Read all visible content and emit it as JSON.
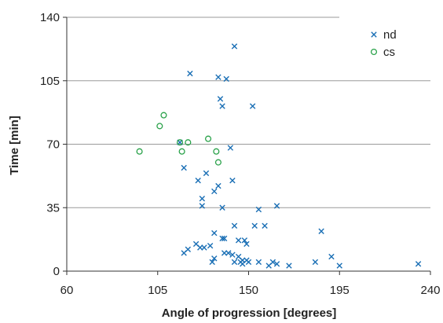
{
  "chart_data": {
    "type": "scatter",
    "title": "",
    "xlabel": "Angle of progression [degrees]",
    "ylabel": "Time [min]",
    "xlim": [
      60,
      240
    ],
    "ylim": [
      0,
      140
    ],
    "xticks": [
      60,
      105,
      150,
      195,
      240
    ],
    "yticks": [
      0,
      35,
      70,
      105,
      140
    ],
    "xtick_labels": [
      "60",
      "105",
      "150",
      "195",
      "240"
    ],
    "ytick_labels": [
      "0",
      "35",
      "70",
      "105",
      "140"
    ],
    "grid": "horizontal",
    "legend": "top-right",
    "series": [
      {
        "name": "nd",
        "marker": "x",
        "color": "#1a6fb5",
        "points": [
          [
            143,
            124
          ],
          [
            121,
            109
          ],
          [
            139,
            106
          ],
          [
            135,
            107
          ],
          [
            136,
            95
          ],
          [
            137,
            91
          ],
          [
            152,
            91
          ],
          [
            141,
            68
          ],
          [
            116,
            71
          ],
          [
            118,
            57
          ],
          [
            125,
            50
          ],
          [
            142,
            50
          ],
          [
            129,
            54
          ],
          [
            133,
            44
          ],
          [
            135,
            47
          ],
          [
            127,
            40
          ],
          [
            127,
            36
          ],
          [
            137,
            35
          ],
          [
            164,
            36
          ],
          [
            155,
            34
          ],
          [
            186,
            22
          ],
          [
            153,
            25
          ],
          [
            158,
            25
          ],
          [
            143,
            25
          ],
          [
            133,
            21
          ],
          [
            137,
            18
          ],
          [
            138,
            18
          ],
          [
            148,
            17
          ],
          [
            149,
            15
          ],
          [
            145,
            17
          ],
          [
            124,
            15
          ],
          [
            126,
            13
          ],
          [
            128,
            13
          ],
          [
            131,
            14
          ],
          [
            138,
            10
          ],
          [
            140,
            10
          ],
          [
            142,
            9
          ],
          [
            145,
            8
          ],
          [
            147,
            6
          ],
          [
            149,
            6
          ],
          [
            146,
            5
          ],
          [
            147,
            4
          ],
          [
            150,
            5
          ],
          [
            155,
            5
          ],
          [
            160,
            3
          ],
          [
            162,
            5
          ],
          [
            164,
            4
          ],
          [
            170,
            3
          ],
          [
            183,
            5
          ],
          [
            191,
            8
          ],
          [
            195,
            3
          ],
          [
            234,
            4
          ],
          [
            118,
            10
          ],
          [
            120,
            12
          ],
          [
            133,
            7
          ],
          [
            132,
            5
          ],
          [
            143,
            5
          ]
        ]
      },
      {
        "name": "cs",
        "marker": "o",
        "color": "#2aa24a",
        "points": [
          [
            96,
            66
          ],
          [
            108,
            86
          ],
          [
            106,
            80
          ],
          [
            116,
            71
          ],
          [
            117,
            66
          ],
          [
            120,
            71
          ],
          [
            130,
            73
          ],
          [
            134,
            66
          ],
          [
            135,
            60
          ]
        ]
      }
    ]
  }
}
